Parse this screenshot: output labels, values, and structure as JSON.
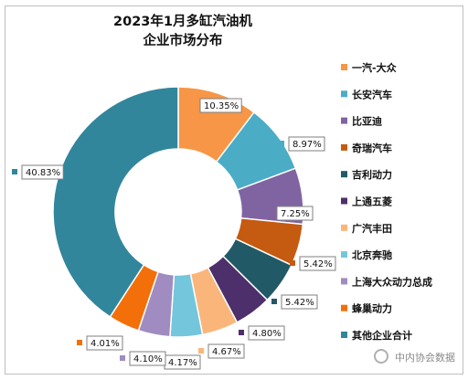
{
  "chart_data": {
    "type": "pie",
    "title": [
      "2023年1月多缸汽油机",
      "企业市场分布"
    ],
    "unit": "%",
    "slices": [
      {
        "name": "一汽-大众",
        "value": 10.35,
        "label": "10.35%",
        "color": "#f79646"
      },
      {
        "name": "长安汽车",
        "value": 8.97,
        "label": "8.97%",
        "color": "#4bacc6"
      },
      {
        "name": "比亚迪",
        "value": 7.25,
        "label": "7.25%",
        "color": "#8064a2"
      },
      {
        "name": "奇瑞汽车",
        "value": 5.42,
        "label": "5.42%",
        "color": "#c55a11"
      },
      {
        "name": "吉利动力",
        "value": 5.42,
        "label": "5.42%",
        "color": "#215967"
      },
      {
        "name": "上通五菱",
        "value": 4.8,
        "label": "4.80%",
        "color": "#4d2f6b"
      },
      {
        "name": "广汽丰田",
        "value": 4.67,
        "label": "4.67%",
        "color": "#fab67a"
      },
      {
        "name": "北京奔驰",
        "value": 4.17,
        "label": "4.17%",
        "color": "#73c6dc"
      },
      {
        "name": "上海大众动力总成",
        "value": 4.1,
        "label": "4.10%",
        "color": "#a08cc0"
      },
      {
        "name": "蜂巢动力",
        "value": 4.01,
        "label": "4.01%",
        "color": "#f36f09"
      },
      {
        "name": "其他企业合计",
        "value": 40.83,
        "label": "40.83%",
        "color": "#31869b"
      }
    ],
    "legend_position": "right"
  },
  "watermark": "中内协会数据"
}
